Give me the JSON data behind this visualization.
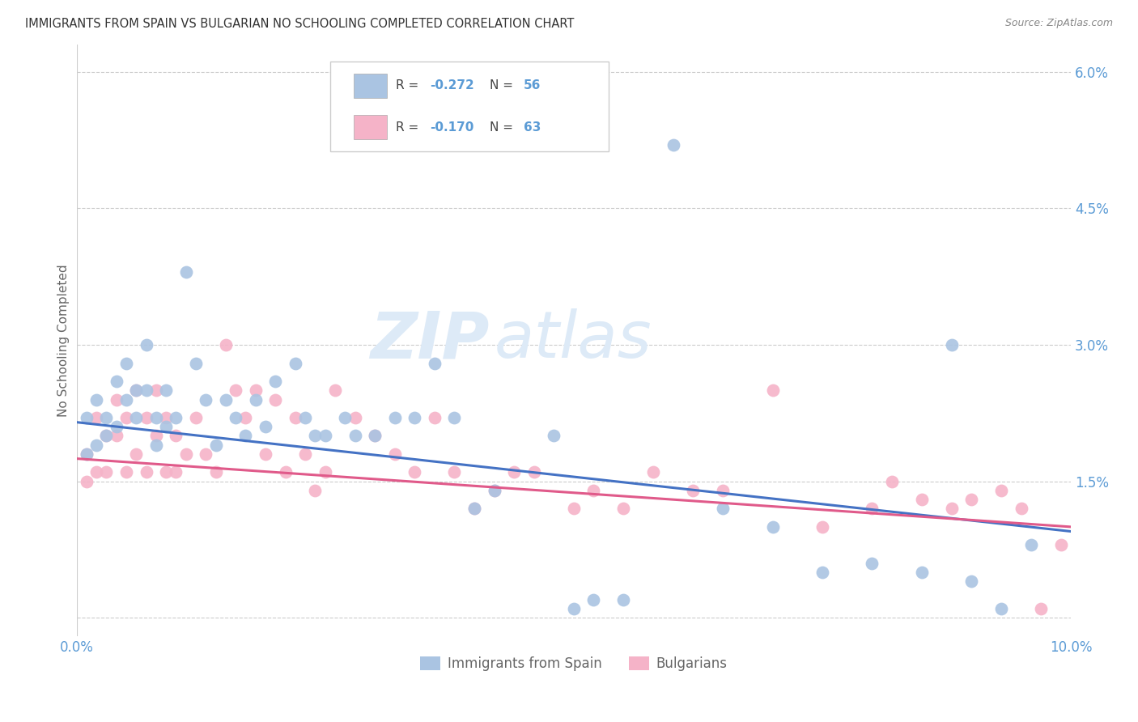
{
  "title": "IMMIGRANTS FROM SPAIN VS BULGARIAN NO SCHOOLING COMPLETED CORRELATION CHART",
  "source": "Source: ZipAtlas.com",
  "ylabel": "No Schooling Completed",
  "legend_label1": "Immigrants from Spain",
  "legend_label2": "Bulgarians",
  "xlim": [
    0.0,
    0.1
  ],
  "ylim": [
    -0.002,
    0.063
  ],
  "yticks": [
    0.0,
    0.015,
    0.03,
    0.045,
    0.06
  ],
  "ytick_labels": [
    "",
    "1.5%",
    "3.0%",
    "4.5%",
    "6.0%"
  ],
  "xticks": [
    0.0,
    0.02,
    0.04,
    0.06,
    0.08,
    0.1
  ],
  "xtick_labels": [
    "0.0%",
    "",
    "",
    "",
    "",
    "10.0%"
  ],
  "color_spain": "#aac4e2",
  "color_bulgaria": "#f5b3c8",
  "line_color_spain": "#4472c4",
  "line_color_bulgaria": "#e05a8a",
  "axis_label_color": "#5b9bd5",
  "watermark_zip": "ZIP",
  "watermark_atlas": "atlas",
  "spain_x": [
    0.001,
    0.001,
    0.002,
    0.002,
    0.003,
    0.003,
    0.004,
    0.004,
    0.005,
    0.005,
    0.006,
    0.006,
    0.007,
    0.007,
    0.008,
    0.008,
    0.009,
    0.009,
    0.01,
    0.011,
    0.012,
    0.013,
    0.014,
    0.015,
    0.016,
    0.017,
    0.018,
    0.019,
    0.02,
    0.022,
    0.023,
    0.024,
    0.025,
    0.027,
    0.028,
    0.03,
    0.032,
    0.034,
    0.036,
    0.038,
    0.04,
    0.042,
    0.048,
    0.05,
    0.052,
    0.055,
    0.06,
    0.065,
    0.07,
    0.075,
    0.08,
    0.085,
    0.088,
    0.09,
    0.093,
    0.096
  ],
  "spain_y": [
    0.022,
    0.018,
    0.024,
    0.019,
    0.022,
    0.02,
    0.026,
    0.021,
    0.028,
    0.024,
    0.025,
    0.022,
    0.03,
    0.025,
    0.022,
    0.019,
    0.025,
    0.021,
    0.022,
    0.038,
    0.028,
    0.024,
    0.019,
    0.024,
    0.022,
    0.02,
    0.024,
    0.021,
    0.026,
    0.028,
    0.022,
    0.02,
    0.02,
    0.022,
    0.02,
    0.02,
    0.022,
    0.022,
    0.028,
    0.022,
    0.012,
    0.014,
    0.02,
    0.001,
    0.002,
    0.002,
    0.052,
    0.012,
    0.01,
    0.005,
    0.006,
    0.005,
    0.03,
    0.004,
    0.001,
    0.008
  ],
  "bulg_x": [
    0.001,
    0.001,
    0.002,
    0.002,
    0.003,
    0.003,
    0.004,
    0.004,
    0.005,
    0.005,
    0.006,
    0.006,
    0.007,
    0.007,
    0.008,
    0.008,
    0.009,
    0.009,
    0.01,
    0.01,
    0.011,
    0.012,
    0.013,
    0.014,
    0.015,
    0.016,
    0.017,
    0.018,
    0.019,
    0.02,
    0.021,
    0.022,
    0.023,
    0.024,
    0.025,
    0.026,
    0.028,
    0.03,
    0.032,
    0.034,
    0.036,
    0.038,
    0.04,
    0.042,
    0.044,
    0.046,
    0.05,
    0.052,
    0.055,
    0.058,
    0.062,
    0.065,
    0.07,
    0.075,
    0.08,
    0.082,
    0.085,
    0.088,
    0.09,
    0.093,
    0.095,
    0.097,
    0.099
  ],
  "bulg_y": [
    0.018,
    0.015,
    0.022,
    0.016,
    0.02,
    0.016,
    0.024,
    0.02,
    0.022,
    0.016,
    0.025,
    0.018,
    0.022,
    0.016,
    0.025,
    0.02,
    0.022,
    0.016,
    0.02,
    0.016,
    0.018,
    0.022,
    0.018,
    0.016,
    0.03,
    0.025,
    0.022,
    0.025,
    0.018,
    0.024,
    0.016,
    0.022,
    0.018,
    0.014,
    0.016,
    0.025,
    0.022,
    0.02,
    0.018,
    0.016,
    0.022,
    0.016,
    0.012,
    0.014,
    0.016,
    0.016,
    0.012,
    0.014,
    0.012,
    0.016,
    0.014,
    0.014,
    0.025,
    0.01,
    0.012,
    0.015,
    0.013,
    0.012,
    0.013,
    0.014,
    0.012,
    0.001,
    0.008
  ],
  "line_spain_x0": 0.0,
  "line_spain_y0": 0.0215,
  "line_spain_x1": 0.1,
  "line_spain_y1": 0.0095,
  "line_bulg_x0": 0.0,
  "line_bulg_y0": 0.0175,
  "line_bulg_x1": 0.1,
  "line_bulg_y1": 0.01
}
